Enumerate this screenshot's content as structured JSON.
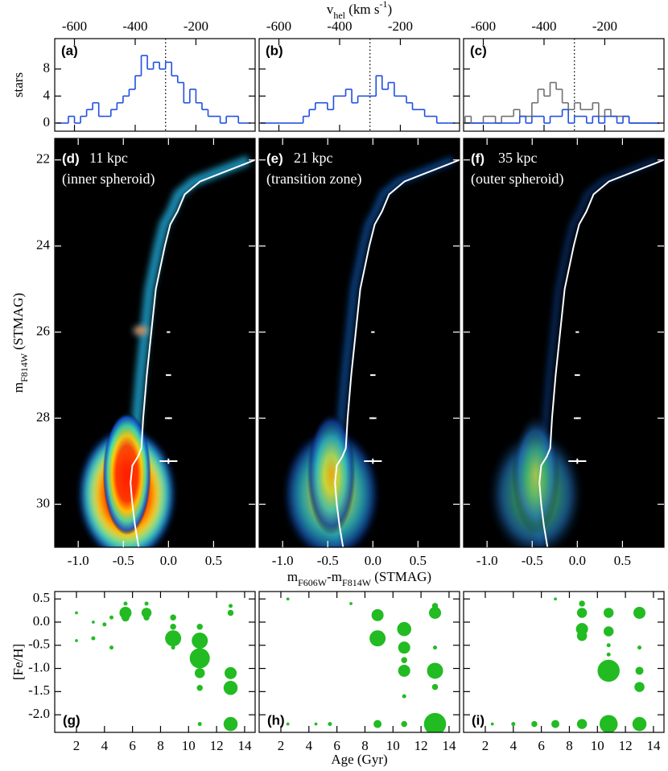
{
  "chart_data": [
    {
      "type": "histogram",
      "label": "(a)",
      "ylabel": "stars",
      "bins": [
        -660,
        -640,
        -620,
        -600,
        -580,
        -560,
        -540,
        -520,
        -500,
        -480,
        -460,
        -440,
        -420,
        -400,
        -380,
        -360,
        -340,
        -320,
        -300,
        -280,
        -260,
        -240,
        -220,
        -200,
        -180,
        -160,
        -140,
        -120,
        -100,
        -80,
        -60,
        -40,
        -20
      ],
      "series": [
        {
          "color": "#2050e0",
          "values": [
            0,
            0,
            1,
            0,
            1,
            2,
            3,
            1,
            1,
            2,
            3,
            4,
            5,
            7,
            10,
            8,
            9,
            8,
            9,
            7,
            6,
            3,
            5,
            3,
            2,
            1,
            1,
            0,
            1,
            1,
            0,
            0
          ]
        }
      ],
      "vline": -300,
      "xlim": [
        -665,
        -5
      ],
      "xticks": [
        -600,
        -400,
        -200
      ],
      "ylim": [
        -1.2,
        12.5
      ],
      "yticks": [
        0,
        4,
        8
      ]
    },
    {
      "type": "histogram",
      "label": "(b)",
      "xlabel": [
        {
          "text": "v"
        },
        {
          "text": "hel",
          "shift": "sub"
        },
        {
          "text": " (km s"
        },
        {
          "text": "-1",
          "shift": "super"
        },
        {
          "text": ")"
        }
      ],
      "bins": [
        -660,
        -640,
        -620,
        -600,
        -580,
        -560,
        -540,
        -520,
        -500,
        -480,
        -460,
        -440,
        -420,
        -400,
        -380,
        -360,
        -340,
        -320,
        -300,
        -280,
        -260,
        -240,
        -220,
        -200,
        -180,
        -160,
        -140,
        -120,
        -100,
        -80,
        -60,
        -40,
        -20
      ],
      "series": [
        {
          "color": "#2050e0",
          "values": [
            0,
            0,
            0,
            0,
            0,
            0,
            0,
            1,
            2,
            3,
            3,
            2,
            4,
            4,
            5,
            3,
            4,
            4,
            4,
            7,
            5,
            6,
            4,
            4,
            3,
            2,
            2,
            1,
            1,
            0,
            0,
            0
          ]
        }
      ],
      "vline": -300,
      "xlim": [
        -665,
        -5
      ],
      "xticks": [
        -600,
        -400,
        -200
      ],
      "ylim": [
        -1.2,
        12.5
      ]
    },
    {
      "type": "histogram",
      "label": "(c)",
      "bins": [
        -660,
        -640,
        -620,
        -600,
        -580,
        -560,
        -540,
        -520,
        -500,
        -480,
        -460,
        -440,
        -420,
        -400,
        -380,
        -360,
        -340,
        -320,
        -300,
        -280,
        -260,
        -240,
        -220,
        -200,
        -180,
        -160,
        -140,
        -120,
        -100,
        -80,
        -60,
        -40,
        -20
      ],
      "series": [
        {
          "color": "#707070",
          "values": [
            1,
            0,
            0,
            1,
            1,
            0,
            1,
            1,
            2,
            1,
            1,
            3,
            5,
            4,
            6,
            5,
            3,
            2,
            3,
            2,
            2,
            3,
            1,
            2,
            1,
            1,
            1,
            0,
            0,
            0,
            0,
            0
          ]
        },
        {
          "color": "#2050e0",
          "values": [
            0,
            0,
            0,
            0,
            0,
            0,
            0,
            0,
            0,
            1,
            0,
            1,
            1,
            0,
            1,
            1,
            2,
            0,
            1,
            1,
            0,
            1,
            0,
            1,
            1,
            0,
            1,
            0,
            0,
            0,
            0,
            0
          ]
        }
      ],
      "vline": -300,
      "xlim": [
        -665,
        -5
      ],
      "xticks": [
        -600,
        -400,
        -200
      ],
      "ylim": [
        -1.2,
        12.5
      ]
    },
    {
      "type": "cmd",
      "label": "(d)",
      "distance": "11 kpc",
      "region": "(inner spheroid)",
      "ylabel": [
        {
          "text": "m"
        },
        {
          "text": "F814W",
          "shift": "sub"
        },
        {
          "text": " (STMAG)"
        }
      ],
      "isochrone": {
        "x": [
          -0.33,
          -0.37,
          -0.4,
          -0.42,
          -0.4,
          -0.34,
          -0.3,
          -0.28,
          -0.24,
          -0.19,
          -0.14,
          -0.09,
          -0.04,
          0.02,
          0.1,
          0.18,
          0.35,
          0.96
        ],
        "y": [
          31.0,
          30.5,
          30.0,
          29.5,
          29.1,
          28.9,
          28.7,
          28.0,
          27.0,
          26.0,
          25.0,
          24.5,
          24.0,
          23.5,
          23.2,
          22.8,
          22.5,
          22.0
        ]
      },
      "errorbars": {
        "x": [
          0,
          0,
          0,
          0
        ],
        "y": [
          26,
          27,
          28,
          29
        ],
        "xerr": [
          0.01,
          0.02,
          0.03,
          0.09
        ],
        "yerr": [
          0.01,
          0.02,
          0.04,
          0.08
        ]
      },
      "xlim": [
        -1.26,
        0.96
      ],
      "xticks": [
        {
          "value": -1,
          "label": "-1.0"
        },
        -0.5,
        {
          "value": 0,
          "label": "0.0"
        },
        0.5
      ],
      "ylim": [
        31.0,
        21.5
      ],
      "yticks": [
        22,
        24,
        26,
        28,
        30
      ]
    },
    {
      "type": "cmd",
      "label": "(e)",
      "distance": "21 kpc",
      "region": "(transition zone)",
      "xlabel": [
        {
          "text": "m"
        },
        {
          "text": "F606W",
          "shift": "sub"
        },
        {
          "text": "-m"
        },
        {
          "text": "F814W",
          "shift": "sub"
        },
        {
          "text": " (STMAG)"
        }
      ],
      "isochrone": {
        "x": [
          -0.33,
          -0.37,
          -0.4,
          -0.42,
          -0.4,
          -0.34,
          -0.3,
          -0.28,
          -0.24,
          -0.19,
          -0.14,
          -0.09,
          -0.04,
          0.02,
          0.1,
          0.18,
          0.35,
          0.96
        ],
        "y": [
          31.0,
          30.5,
          30.0,
          29.5,
          29.1,
          28.9,
          28.7,
          28.0,
          27.0,
          26.0,
          25.0,
          24.5,
          24.0,
          23.5,
          23.2,
          22.8,
          22.5,
          22.0
        ]
      },
      "errorbars": {
        "x": [
          0,
          0,
          0,
          0
        ],
        "y": [
          26,
          27,
          28,
          29
        ],
        "xerr": [
          0.01,
          0.02,
          0.03,
          0.09
        ],
        "yerr": [
          0.01,
          0.02,
          0.04,
          0.08
        ]
      },
      "xlim": [
        -1.26,
        0.96
      ],
      "xticks": [
        {
          "value": -1,
          "label": "-1.0"
        },
        -0.5,
        {
          "value": 0,
          "label": "0.0"
        },
        0.5
      ],
      "ylim": [
        31.0,
        21.5
      ]
    },
    {
      "type": "cmd",
      "label": "(f)",
      "distance": "35 kpc",
      "region": "(outer spheroid)",
      "isochrone": {
        "x": [
          -0.33,
          -0.37,
          -0.4,
          -0.42,
          -0.4,
          -0.34,
          -0.3,
          -0.28,
          -0.24,
          -0.19,
          -0.14,
          -0.09,
          -0.04,
          0.02,
          0.1,
          0.18,
          0.35,
          0.96
        ],
        "y": [
          31.0,
          30.5,
          30.0,
          29.5,
          29.1,
          28.9,
          28.7,
          28.0,
          27.0,
          26.0,
          25.0,
          24.5,
          24.0,
          23.5,
          23.2,
          22.8,
          22.5,
          22.0
        ]
      },
      "errorbars": {
        "x": [
          0,
          0,
          0,
          0
        ],
        "y": [
          26,
          27,
          28,
          29
        ],
        "xerr": [
          0.01,
          0.02,
          0.03,
          0.09
        ],
        "yerr": [
          0.01,
          0.02,
          0.04,
          0.08
        ]
      },
      "xlim": [
        -1.26,
        0.96
      ],
      "xticks": [
        {
          "value": -1,
          "label": "-1.0"
        },
        -0.5,
        {
          "value": 0,
          "label": "0.0"
        },
        0.5
      ],
      "ylim": [
        31.0,
        21.5
      ]
    },
    {
      "type": "bubble",
      "label": "(g)",
      "ylabel": "[Fe/H]",
      "color": "#22bb22",
      "x": [
        5.5,
        5.5,
        5.5,
        7,
        7,
        7,
        4.5,
        4,
        3.2,
        8.9,
        8.9,
        8.9,
        8.9,
        10.8,
        10.8,
        10.8,
        10.8,
        10.8,
        13,
        13,
        13,
        13,
        13,
        10.8,
        4.5,
        3.2,
        2,
        2
      ],
      "y": [
        0.4,
        0.2,
        0.1,
        0.4,
        0.2,
        0.1,
        0.1,
        -0.05,
        0,
        0.1,
        -0.1,
        -0.35,
        -0.55,
        -0.1,
        -0.4,
        -0.78,
        -1.1,
        -1.42,
        0.35,
        0.2,
        -1.1,
        -1.42,
        -2.2,
        -2.2,
        -0.55,
        -0.35,
        -0.4,
        0.2
      ],
      "sizes": [
        2,
        6,
        4,
        2,
        5,
        3,
        2,
        2,
        1.5,
        3,
        3,
        8,
        2,
        3,
        8,
        10,
        5,
        3,
        2,
        3,
        6,
        7,
        7,
        2,
        2,
        2,
        1.5,
        1.5
      ],
      "xlim": [
        0.45,
        14.75
      ],
      "xticks": [
        2,
        4,
        6,
        8,
        10,
        12,
        14
      ],
      "ylim": [
        -2.38,
        0.66
      ],
      "yticks": [
        0.5,
        {
          "value": 0,
          "label": "0.0"
        },
        -0.5,
        {
          "value": -1,
          "label": "-1.0"
        },
        -1.5,
        {
          "value": -2,
          "label": "-2.0"
        }
      ]
    },
    {
      "type": "bubble",
      "label": "(h)",
      "xlabel": [
        {
          "text": "Age (Gyr)"
        }
      ],
      "color": "#22bb22",
      "x": [
        8.9,
        8.9,
        10.8,
        10.8,
        10.8,
        10.8,
        13,
        13,
        13,
        13,
        13,
        13,
        10.8,
        8.9,
        5.5,
        4.5,
        2.5,
        7,
        2.5,
        10.8
      ],
      "y": [
        0.15,
        -0.35,
        -0.15,
        -0.55,
        -1.05,
        -0.82,
        0.35,
        0.2,
        -0.55,
        -1.05,
        -1.4,
        -2.2,
        -2.2,
        -2.2,
        -2.2,
        -2.2,
        -2.2,
        0.4,
        0.5,
        -1.6
      ],
      "sizes": [
        6,
        8,
        7,
        6,
        6,
        3,
        3,
        6,
        2,
        8,
        3,
        11,
        3,
        4,
        2,
        1.5,
        1.5,
        1.5,
        1.5,
        2
      ],
      "xlim": [
        0.45,
        14.75
      ],
      "xticks": [
        2,
        4,
        6,
        8,
        10,
        12,
        14
      ],
      "ylim": [
        -2.38,
        0.66
      ]
    },
    {
      "type": "bubble",
      "label": "(i)",
      "color": "#22bb22",
      "x": [
        8.9,
        8.9,
        8.9,
        8.9,
        10.8,
        10.8,
        10.8,
        10.8,
        10.8,
        13,
        13,
        13,
        13,
        13,
        10.8,
        8.9,
        7,
        5.5,
        4,
        2.5,
        7
      ],
      "y": [
        0.4,
        0.2,
        -0.15,
        -0.3,
        0.2,
        -0.2,
        -0.5,
        -0.7,
        -1.05,
        0.2,
        -0.55,
        -1.05,
        -1.4,
        -2.2,
        -2.2,
        -2.2,
        -2.2,
        -2.2,
        -2.2,
        -2.2,
        0.5
      ],
      "sizes": [
        3,
        5,
        6,
        5,
        5,
        5,
        2,
        2,
        11,
        6,
        2,
        4,
        5,
        7,
        9,
        5,
        4,
        3,
        2,
        1.5,
        1.5
      ],
      "xlim": [
        0.45,
        14.75
      ],
      "xticks": [
        2,
        4,
        6,
        8,
        10,
        12,
        14
      ],
      "ylim": [
        -2.38,
        0.66
      ]
    }
  ]
}
